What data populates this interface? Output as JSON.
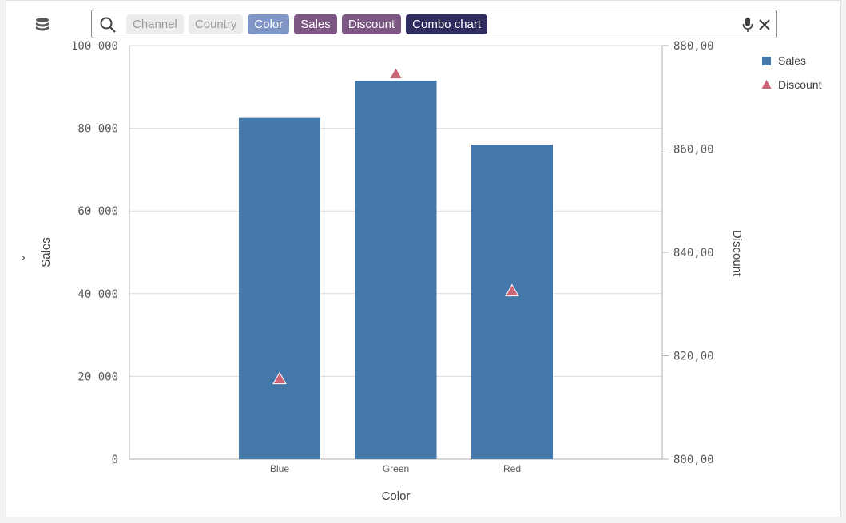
{
  "search": {
    "chips": [
      {
        "label": "Channel",
        "state": "inactive"
      },
      {
        "label": "Country",
        "state": "inactive"
      },
      {
        "label": "Color",
        "state": "active",
        "bg": "#8096c7"
      },
      {
        "label": "Sales",
        "state": "active",
        "bg": "#7d5784"
      },
      {
        "label": "Discount",
        "state": "active",
        "bg": "#7d5784"
      },
      {
        "label": "Combo chart",
        "state": "active",
        "bg": "#2f2c5f"
      }
    ]
  },
  "colors": {
    "bar": "#4477aa",
    "marker": "#cc6677",
    "grid": "#dcdcdc",
    "axis": "#b0b0b0"
  },
  "chart_data": {
    "type": "combo",
    "categories": [
      "Blue",
      "Green",
      "Red"
    ],
    "xlabel": "Color",
    "series": [
      {
        "name": "Sales",
        "kind": "bar",
        "axis": "left",
        "values": [
          82500,
          91500,
          76000
        ]
      },
      {
        "name": "Discount",
        "kind": "marker",
        "marker": "triangle",
        "axis": "right",
        "values": [
          815.5,
          874.5,
          832.5
        ]
      }
    ],
    "left_axis": {
      "label": "Sales",
      "ylim": [
        0,
        100000
      ],
      "ticks": [
        0,
        20000,
        40000,
        60000,
        80000,
        100000
      ],
      "tick_labels": [
        "0",
        "20 000",
        "40 000",
        "60 000",
        "80 000",
        "100 000"
      ]
    },
    "right_axis": {
      "label": "Discount",
      "ylim": [
        800,
        880
      ],
      "ticks": [
        800,
        820,
        840,
        860,
        880
      ],
      "tick_labels": [
        "800,00",
        "820,00",
        "840,00",
        "860,00",
        "880,00"
      ]
    },
    "legend": {
      "position": "top-right",
      "entries": [
        "Sales",
        "Discount"
      ]
    },
    "grid": true
  }
}
